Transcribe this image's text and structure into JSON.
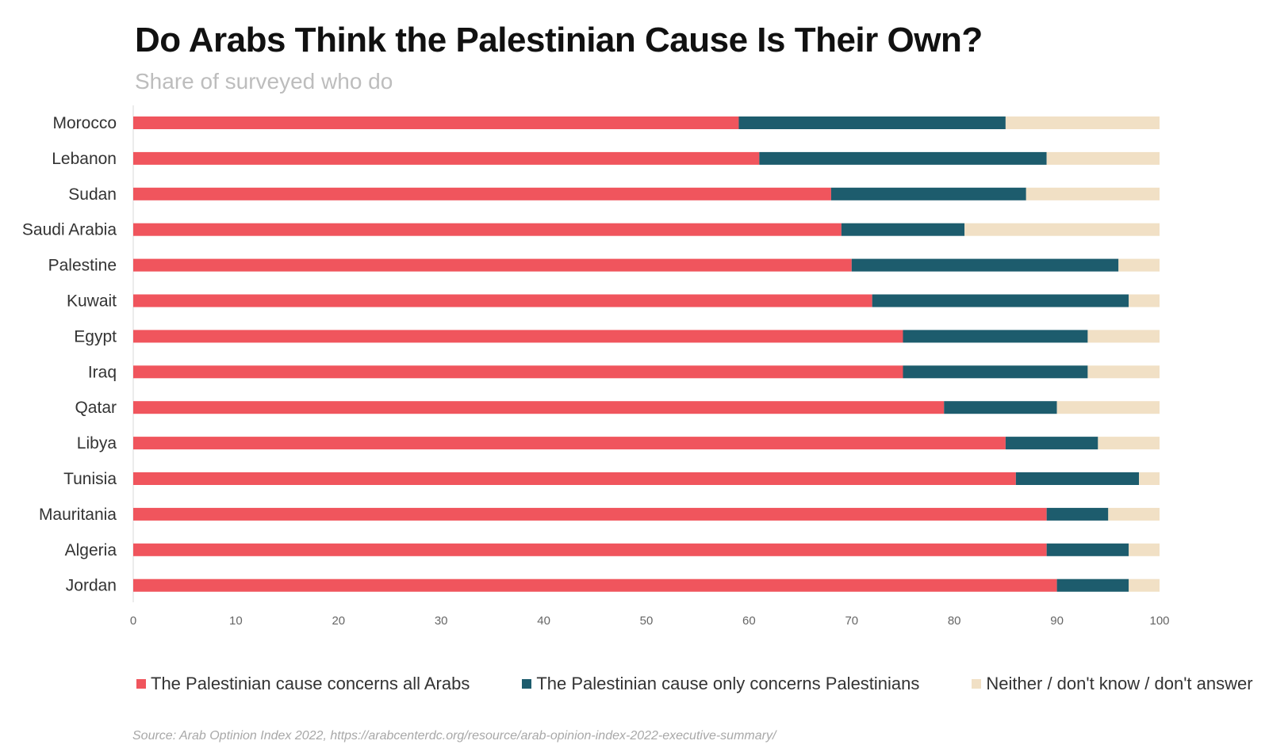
{
  "chart_data": {
    "type": "bar",
    "orientation": "horizontal",
    "stacked": true,
    "title": "Do Arabs Think the Palestinian Cause Is Their Own?",
    "subtitle": "Share of surveyed who do",
    "categories": [
      "Morocco",
      "Lebanon",
      "Sudan",
      "Saudi Arabia",
      "Palestine",
      "Kuwait",
      "Egypt",
      "Iraq",
      "Qatar",
      "Libya",
      "Tunisia",
      "Mauritania",
      "Algeria",
      "Jordan"
    ],
    "series": [
      {
        "name": "The Palestinian cause concerns all Arabs",
        "color": "#f0555d",
        "values": [
          59,
          61,
          68,
          69,
          70,
          72,
          75,
          75,
          79,
          85,
          86,
          89,
          89,
          90
        ]
      },
      {
        "name": "The Palestinian cause only concerns Palestinians",
        "color": "#1d5c6d",
        "values": [
          26,
          28,
          19,
          12,
          26,
          25,
          18,
          18,
          11,
          9,
          12,
          6,
          8,
          7
        ]
      },
      {
        "name": "Neither / don't know / don't answer",
        "color": "#f1e0c5",
        "values": [
          15,
          11,
          13,
          19,
          4,
          3,
          7,
          7,
          10,
          6,
          2,
          5,
          3,
          3
        ]
      }
    ],
    "xlim": [
      0,
      100
    ],
    "xticks": [
      0,
      10,
      20,
      30,
      40,
      50,
      60,
      70,
      80,
      90,
      100
    ],
    "grid": false,
    "legend_position": "bottom",
    "source": "Source: Arab Optinion Index 2022, https://arabcenterdc.org/resource/arab-opinion-index-2022-executive-summary/"
  }
}
